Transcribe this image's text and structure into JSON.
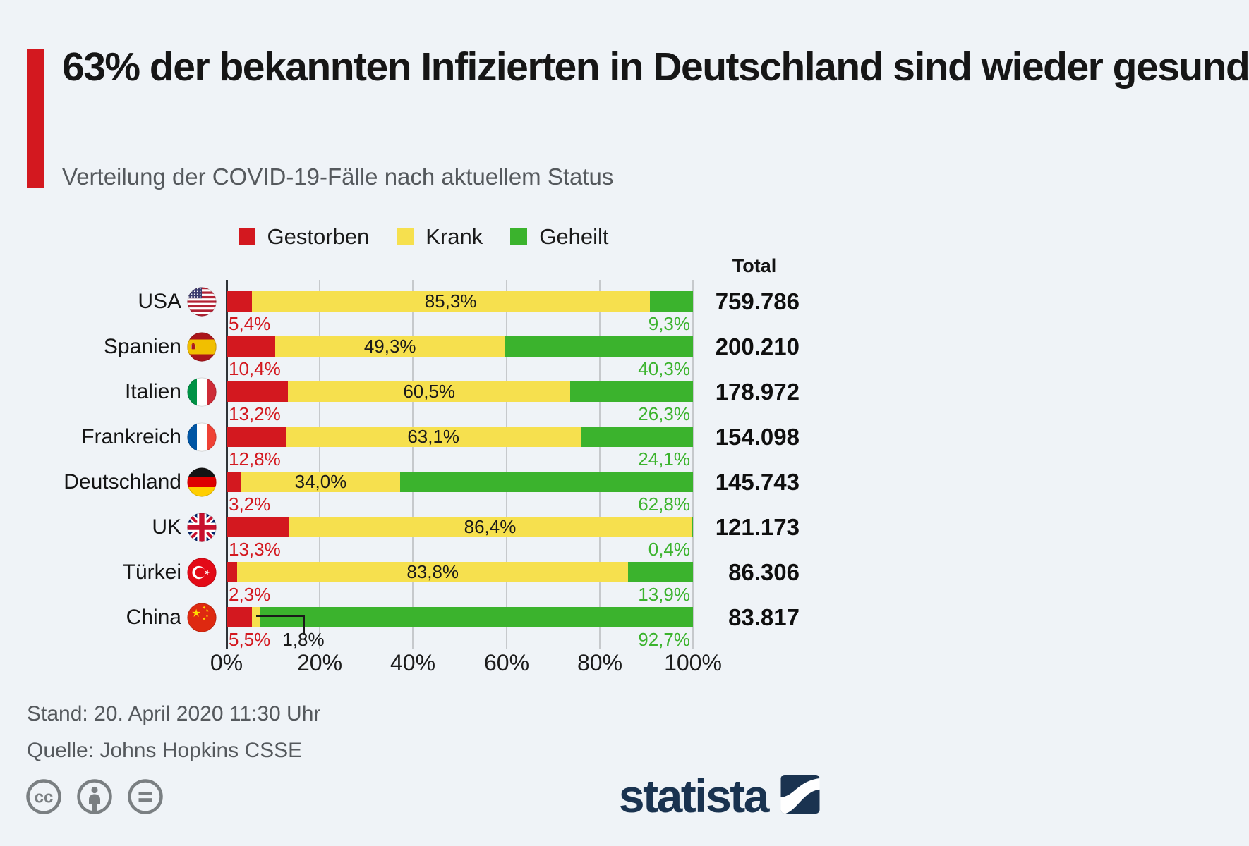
{
  "header": {
    "title": "63% der bekannten Infizierten in Deutschland sind wieder gesund",
    "subtitle": "Verteilung der COVID-19-Fälle nach aktuellem Status"
  },
  "legend": [
    {
      "label": "Gestorben",
      "color": "#d3181f"
    },
    {
      "label": "Krank",
      "color": "#f6e04e"
    },
    {
      "label": "Geheilt",
      "color": "#3bb32d"
    }
  ],
  "chart_data": {
    "type": "bar",
    "stacked": true,
    "orientation": "horizontal",
    "x_range": [
      0,
      100
    ],
    "x_ticks": [
      "0%",
      "20%",
      "40%",
      "60%",
      "80%",
      "100%"
    ],
    "total_label": "Total",
    "series_names": [
      "Gestorben",
      "Krank",
      "Geheilt"
    ],
    "rows": [
      {
        "country": "USA",
        "flag": "usa",
        "gestorben": 5.4,
        "krank": 85.3,
        "geheilt": 9.3,
        "gestorben_label": "5,4%",
        "krank_label": "85,3%",
        "geheilt_label": "9,3%",
        "total": "759.786"
      },
      {
        "country": "Spanien",
        "flag": "spain",
        "gestorben": 10.4,
        "krank": 49.3,
        "geheilt": 40.3,
        "gestorben_label": "10,4%",
        "krank_label": "49,3%",
        "geheilt_label": "40,3%",
        "total": "200.210"
      },
      {
        "country": "Italien",
        "flag": "italy",
        "gestorben": 13.2,
        "krank": 60.5,
        "geheilt": 26.3,
        "gestorben_label": "13,2%",
        "krank_label": "60,5%",
        "geheilt_label": "26,3%",
        "total": "178.972"
      },
      {
        "country": "Frankreich",
        "flag": "france",
        "gestorben": 12.8,
        "krank": 63.1,
        "geheilt": 24.1,
        "gestorben_label": "12,8%",
        "krank_label": "63,1%",
        "geheilt_label": "24,1%",
        "total": "154.098"
      },
      {
        "country": "Deutschland",
        "flag": "germany",
        "gestorben": 3.2,
        "krank": 34.0,
        "geheilt": 62.8,
        "gestorben_label": "3,2%",
        "krank_label": "34,0%",
        "geheilt_label": "62,8%",
        "total": "145.743"
      },
      {
        "country": "UK",
        "flag": "uk",
        "gestorben": 13.3,
        "krank": 86.4,
        "geheilt": 0.4,
        "gestorben_label": "13,3%",
        "krank_label": "86,4%",
        "geheilt_label": "0,4%",
        "total": "121.173"
      },
      {
        "country": "Türkei",
        "flag": "turkey",
        "gestorben": 2.3,
        "krank": 83.8,
        "geheilt": 13.9,
        "gestorben_label": "2,3%",
        "krank_label": "83,8%",
        "geheilt_label": "13,9%",
        "total": "86.306"
      },
      {
        "country": "China",
        "flag": "china",
        "gestorben": 5.5,
        "krank": 1.8,
        "geheilt": 92.7,
        "gestorben_label": "5,5%",
        "krank_label": "1,8%",
        "geheilt_label": "92,7%",
        "total": "83.817",
        "krank_callout": true
      }
    ]
  },
  "footer": {
    "stand": "Stand: 20. April 2020 11:30 Uhr",
    "quelle": "Quelle: Johns Hopkins CSSE"
  },
  "branding": {
    "logo_text": "statista",
    "cc_icons": [
      "cc-icon",
      "attribution-icon",
      "no-derivatives-icon"
    ]
  },
  "colors": {
    "accent": "#d3181f",
    "gestorben": "#d3181f",
    "krank": "#f6e04e",
    "geheilt": "#3bb32d",
    "background": "#eff3f7",
    "gridline": "#c6c9cc",
    "axis": "#2f3338",
    "statista_blue": "#1a3350"
  }
}
